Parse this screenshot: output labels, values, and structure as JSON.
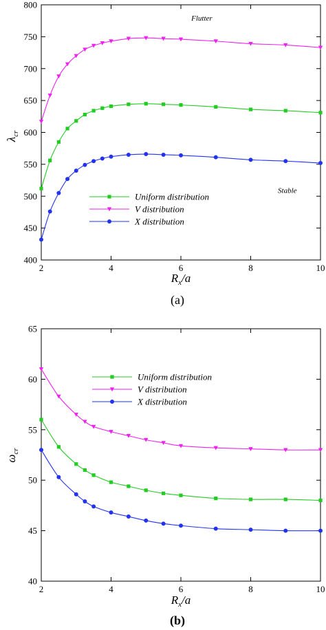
{
  "chart_data": [
    {
      "type": "line",
      "panel_label": "(a)",
      "xlabel_main": "R",
      "xlabel_sub": "x",
      "xlabel_suffix": "/a",
      "ylabel_main": "λ",
      "ylabel_sub": "cr",
      "xlim": [
        2,
        10
      ],
      "ylim": [
        400,
        800
      ],
      "xticks": [
        2,
        4,
        6,
        8,
        10
      ],
      "yticks": [
        400,
        450,
        500,
        550,
        600,
        650,
        700,
        750,
        800
      ],
      "grid": false,
      "legend_position": "lower-left",
      "annotations": [
        {
          "text": "Flutter",
          "x": 6.6,
          "y": 775
        },
        {
          "text": "Stable",
          "x": 9.05,
          "y": 505
        }
      ],
      "series": [
        {
          "name": "Uniform distribution",
          "color": "#22cc22",
          "marker": "square",
          "x": [
            2,
            2.25,
            2.5,
            2.75,
            3,
            3.25,
            3.5,
            3.75,
            4,
            4.5,
            5,
            5.5,
            6,
            7,
            8,
            9,
            10
          ],
          "y": [
            512,
            556,
            585,
            606,
            618,
            628,
            634,
            638,
            641,
            644,
            645,
            644,
            643,
            640,
            636,
            634,
            631
          ]
        },
        {
          "name": "V distribution",
          "color": "#ee22ee",
          "marker": "triangle-down",
          "x": [
            2,
            2.25,
            2.5,
            2.75,
            3,
            3.25,
            3.5,
            3.75,
            4,
            4.5,
            5,
            5.5,
            6,
            7,
            8,
            9,
            10
          ],
          "y": [
            617,
            658,
            688,
            707,
            720,
            730,
            736,
            740,
            743,
            747,
            748,
            747,
            746,
            743,
            739,
            737,
            733
          ]
        },
        {
          "name": "X distribution",
          "color": "#2233ee",
          "marker": "circle",
          "x": [
            2,
            2.25,
            2.5,
            2.75,
            3,
            3.25,
            3.5,
            3.75,
            4,
            4.5,
            5,
            5.5,
            6,
            7,
            8,
            9,
            10
          ],
          "y": [
            432,
            476,
            505,
            527,
            540,
            549,
            555,
            559,
            562,
            565,
            566,
            565,
            564,
            561,
            557,
            555,
            552
          ]
        }
      ]
    },
    {
      "type": "line",
      "panel_label": "(b)",
      "xlabel_main": "R",
      "xlabel_sub": "x",
      "xlabel_suffix": "/a",
      "ylabel_main": "ω",
      "ylabel_sub": "cr",
      "xlim": [
        2,
        10
      ],
      "ylim": [
        40,
        65
      ],
      "xticks": [
        2,
        4,
        6,
        8,
        10
      ],
      "yticks": [
        40,
        45,
        50,
        55,
        60,
        65
      ],
      "grid": false,
      "legend_position": "top-right",
      "series": [
        {
          "name": "Uniform distribution",
          "color": "#22cc22",
          "marker": "square",
          "x": [
            2,
            2.5,
            3,
            3.25,
            3.5,
            4,
            4.5,
            5,
            5.5,
            6,
            7,
            8,
            9,
            10
          ],
          "y": [
            56,
            53.3,
            51.6,
            51.0,
            50.5,
            49.8,
            49.4,
            49.0,
            48.7,
            48.5,
            48.2,
            48.1,
            48.1,
            48.0
          ]
        },
        {
          "name": "V distribution",
          "color": "#ee22ee",
          "marker": "triangle-down",
          "x": [
            2,
            2.5,
            3,
            3.25,
            3.5,
            4,
            4.5,
            5,
            5.5,
            6,
            7,
            8,
            9,
            10
          ],
          "y": [
            61,
            58.3,
            56.5,
            55.8,
            55.3,
            54.8,
            54.4,
            54.0,
            53.7,
            53.4,
            53.2,
            53.1,
            53.0,
            53.0
          ]
        },
        {
          "name": "X distribution",
          "color": "#2233ee",
          "marker": "circle",
          "x": [
            2,
            2.5,
            3,
            3.25,
            3.5,
            4,
            4.5,
            5,
            5.5,
            6,
            7,
            8,
            9,
            10
          ],
          "y": [
            53,
            50.3,
            48.6,
            47.9,
            47.4,
            46.8,
            46.4,
            46.0,
            45.7,
            45.5,
            45.2,
            45.1,
            45.0,
            45.0
          ]
        }
      ]
    }
  ]
}
